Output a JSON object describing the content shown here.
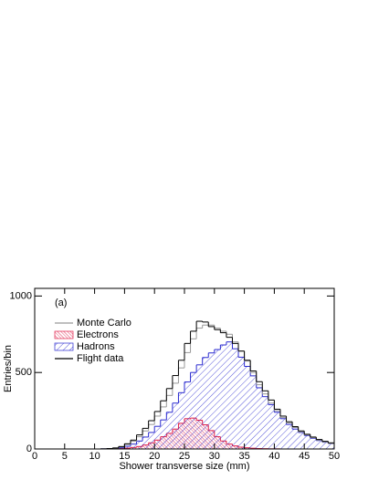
{
  "chart_data": {
    "type": "histogram",
    "annotation": "(a)",
    "x_label": "Shower transverse size (mm)",
    "y_label": "Entries/bin",
    "bins": [
      0,
      1,
      2,
      3,
      4,
      5,
      6,
      7,
      8,
      9,
      10,
      11,
      12,
      13,
      14,
      15,
      16,
      17,
      18,
      19,
      20,
      21,
      22,
      23,
      24,
      25,
      26,
      27,
      28,
      29,
      30,
      31,
      32,
      33,
      34,
      35,
      36,
      37,
      38,
      39,
      40,
      41,
      42,
      43,
      44,
      45,
      46,
      47,
      48,
      49,
      50
    ],
    "series": [
      {
        "name": "Monte Carlo",
        "color": "#999999",
        "style": "line",
        "values": [
          0,
          0,
          0,
          0,
          0,
          0,
          0,
          0,
          0,
          0,
          0,
          1,
          3,
          6,
          14,
          30,
          50,
          80,
          118,
          160,
          215,
          275,
          350,
          430,
          530,
          630,
          720,
          790,
          810,
          810,
          790,
          770,
          750,
          700,
          640,
          575,
          500,
          420,
          360,
          300,
          250,
          205,
          170,
          140,
          112,
          92,
          74,
          58,
          46,
          36
        ]
      },
      {
        "name": "Electrons",
        "color": "#e0204a",
        "style": "hatch",
        "values": [
          0,
          0,
          0,
          0,
          0,
          0,
          0,
          0,
          0,
          0,
          0,
          0,
          0,
          1,
          3,
          6,
          10,
          16,
          26,
          40,
          58,
          80,
          102,
          130,
          168,
          198,
          202,
          188,
          158,
          120,
          80,
          52,
          32,
          20,
          12,
          8,
          5,
          3,
          2,
          1,
          1,
          0,
          0,
          0,
          0,
          0,
          0,
          0,
          0,
          0
        ]
      },
      {
        "name": "Hadrons",
        "color": "#2a2ad0",
        "style": "hatch",
        "values": [
          0,
          0,
          0,
          0,
          0,
          0,
          0,
          0,
          0,
          0,
          0,
          1,
          2,
          4,
          8,
          18,
          32,
          52,
          78,
          108,
          148,
          190,
          240,
          300,
          368,
          438,
          500,
          550,
          598,
          628,
          650,
          680,
          700,
          655,
          600,
          540,
          478,
          400,
          342,
          290,
          240,
          198,
          160,
          130,
          108,
          88,
          70,
          55,
          44,
          35
        ]
      },
      {
        "name": "Flight data",
        "color": "#000000",
        "style": "line",
        "values": [
          0,
          0,
          0,
          0,
          0,
          0,
          0,
          0,
          0,
          0,
          0,
          1,
          3,
          7,
          16,
          34,
          58,
          92,
          135,
          185,
          245,
          315,
          395,
          480,
          580,
          690,
          770,
          835,
          830,
          800,
          780,
          760,
          730,
          690,
          640,
          580,
          510,
          440,
          380,
          320,
          260,
          215,
          178,
          146,
          118,
          96,
          78,
          62,
          50,
          40
        ]
      }
    ],
    "xlim": [
      0,
      50
    ],
    "xticks": [
      0,
      5,
      10,
      15,
      20,
      25,
      30,
      35,
      40,
      45,
      50
    ],
    "ylim": [
      0,
      1050
    ],
    "yticks": [
      0,
      500,
      1000
    ]
  }
}
